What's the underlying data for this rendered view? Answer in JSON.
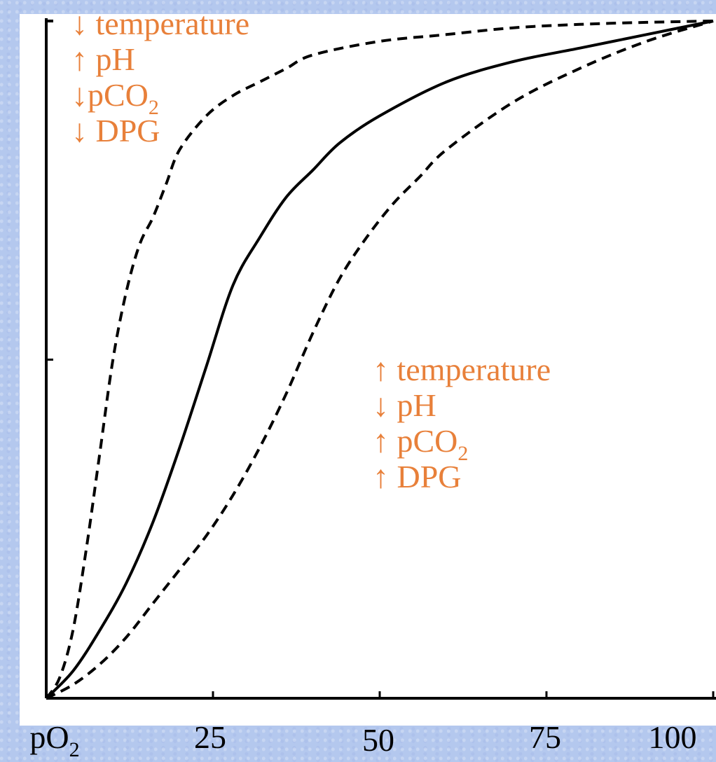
{
  "chart_data": {
    "type": "line",
    "xlabel_base": "pO",
    "xlabel_sub": "2",
    "xlim": [
      0,
      100
    ],
    "ylim": [
      0,
      100
    ],
    "x_ticks": [
      "25",
      "50",
      "75",
      "100"
    ],
    "x_tick_values": [
      25,
      50,
      75,
      100
    ],
    "y_tick_values": [
      50
    ],
    "series": [
      {
        "style": "dashed",
        "x": [
          0,
          2,
          4,
          6,
          8,
          10,
          12,
          14,
          16,
          18,
          20,
          24,
          28,
          32,
          36,
          40,
          50,
          60,
          70,
          80,
          90,
          100
        ],
        "y": [
          0,
          3,
          10,
          22,
          36,
          50,
          60,
          67,
          71,
          76,
          81,
          86,
          89,
          91,
          93,
          95,
          97,
          98,
          99,
          99.5,
          99.8,
          100
        ]
      },
      {
        "style": "solid",
        "x": [
          0,
          4,
          8,
          12,
          16,
          20,
          24,
          28,
          32,
          36,
          40,
          44,
          50,
          60,
          70,
          80,
          90,
          100
        ],
        "y": [
          0,
          4,
          10,
          17,
          26,
          37,
          49,
          61,
          68,
          74,
          78,
          82,
          86,
          91,
          94,
          96,
          98,
          100
        ]
      },
      {
        "style": "dashed",
        "x": [
          0,
          4,
          8,
          12,
          16,
          20,
          24,
          28,
          32,
          36,
          40,
          44,
          48,
          52,
          56,
          60,
          70,
          80,
          90,
          100
        ],
        "y": [
          0,
          2,
          5,
          9,
          14,
          19,
          24,
          30,
          37,
          45,
          54,
          62,
          68,
          73,
          77,
          81,
          88,
          93,
          97,
          100
        ]
      }
    ]
  },
  "annotations": {
    "left": {
      "line1": "↓ temperature",
      "line2": "↑ pH",
      "line3_base": "↓pCO",
      "line3_sub": "2",
      "line4": "↓ DPG"
    },
    "right": {
      "line1": "↑ temperature",
      "line2": "↓ pH",
      "line3_base": "↑ pCO",
      "line3_sub": "2",
      "line4": "↑ DPG"
    }
  },
  "colors": {
    "annotation": "#e8803a",
    "background": "#b4c8ee",
    "plot_background": "#ffffff",
    "axes": "#000000"
  }
}
